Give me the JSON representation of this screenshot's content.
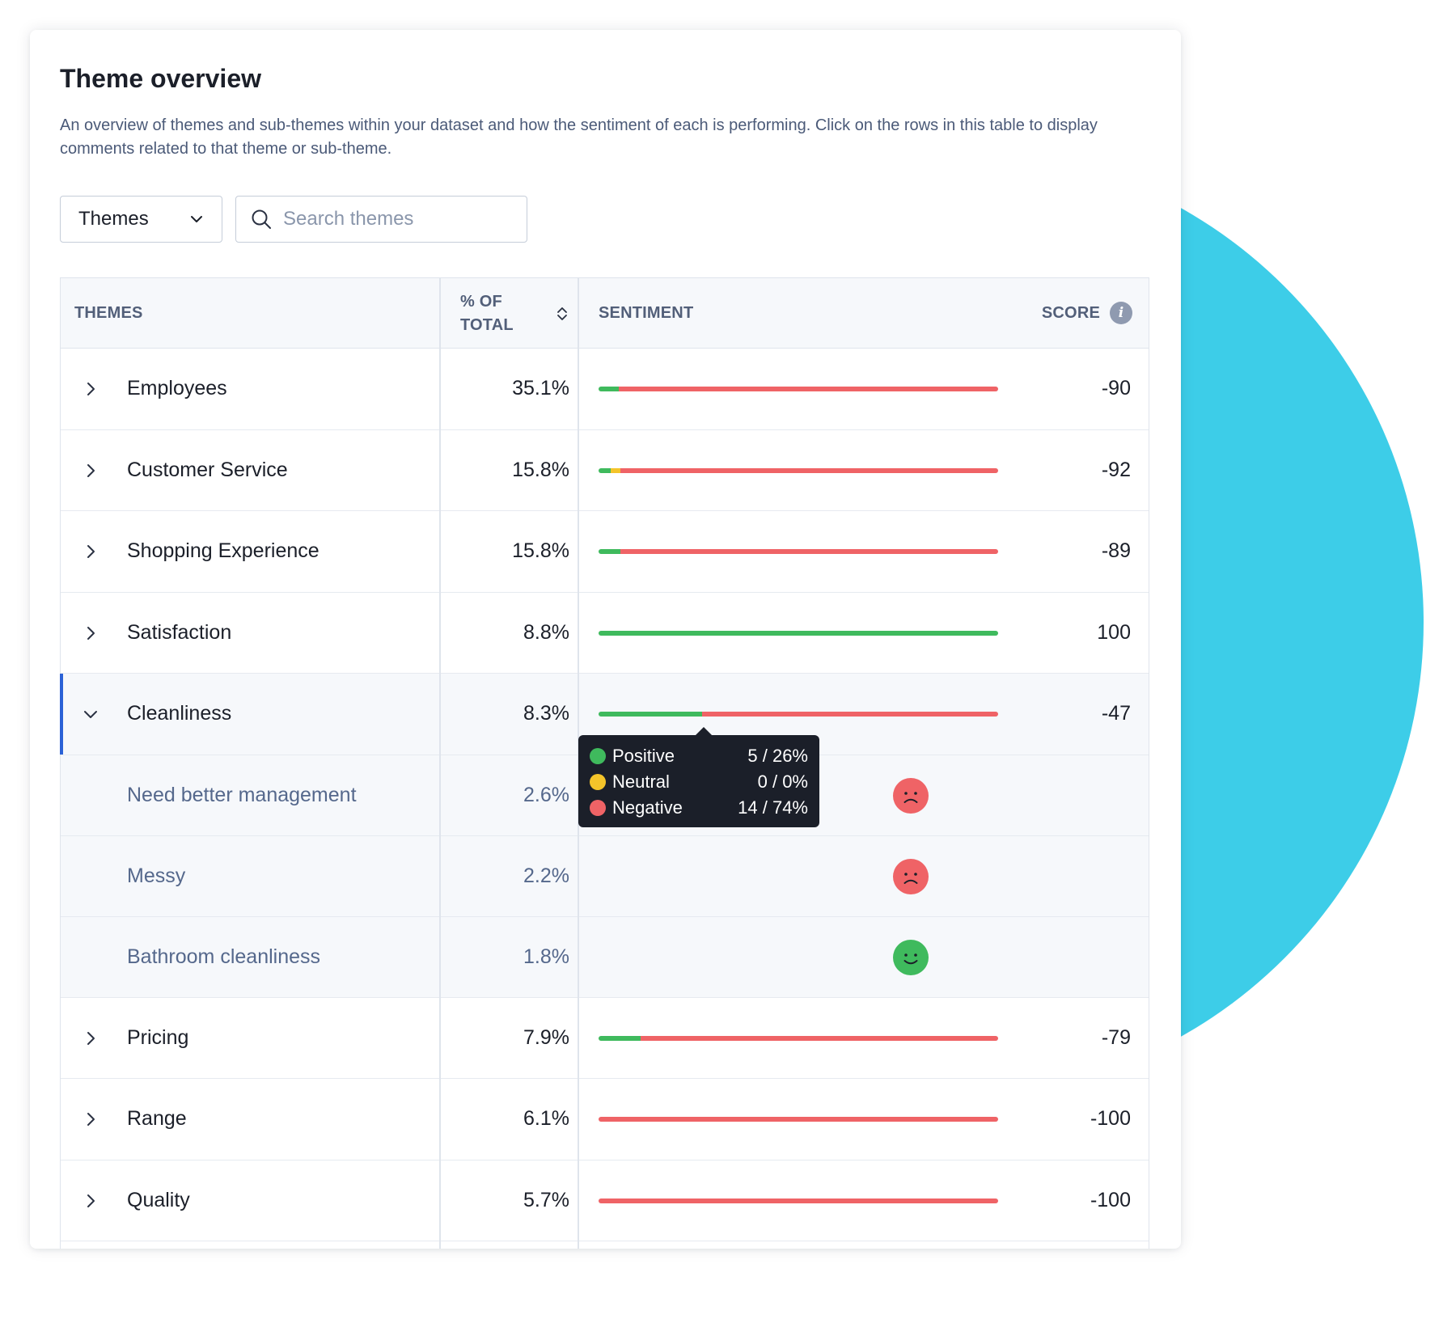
{
  "panel": {
    "title": "Theme overview",
    "description": "An overview of themes and sub-themes within your dataset and how the sentiment of each is performing. Click on the rows in this table to display comments related to that theme or sub-theme."
  },
  "controls": {
    "view_select": "Themes",
    "search_placeholder": "Search themes"
  },
  "table": {
    "headers": {
      "themes": "THEMES",
      "pct_line1": "% OF",
      "pct_line2": "TOTAL",
      "sentiment": "SENTIMENT",
      "score": "SCORE"
    },
    "rows": [
      {
        "name": "Employees",
        "pct": "35.1%",
        "score": "-90",
        "pos": 5,
        "neu": 0,
        "neg": 95
      },
      {
        "name": "Customer Service",
        "pct": "15.8%",
        "score": "-92",
        "pos": 3,
        "neu": 2.5,
        "neg": 94.5
      },
      {
        "name": "Shopping Experience",
        "pct": "15.8%",
        "score": "-89",
        "pos": 5.5,
        "neu": 0,
        "neg": 94.5
      },
      {
        "name": "Satisfaction",
        "pct": "8.8%",
        "score": "100",
        "pos": 100,
        "neu": 0,
        "neg": 0
      },
      {
        "name": "Cleanliness",
        "pct": "8.3%",
        "score": "-47",
        "pos": 26,
        "neu": 0,
        "neg": 74,
        "expanded": true
      },
      {
        "name": "Pricing",
        "pct": "7.9%",
        "score": "-79",
        "pos": 10.5,
        "neu": 0,
        "neg": 89.5
      },
      {
        "name": "Range",
        "pct": "6.1%",
        "score": "-100",
        "pos": 0,
        "neu": 0,
        "neg": 100
      },
      {
        "name": "Quality",
        "pct": "5.7%",
        "score": "-100",
        "pos": 0,
        "neu": 0,
        "neg": 100
      }
    ],
    "subrows": [
      {
        "name": "Need better management",
        "pct": "2.6%",
        "sentiment": "negative"
      },
      {
        "name": "Messy",
        "pct": "2.2%",
        "sentiment": "negative"
      },
      {
        "name": "Bathroom cleanliness",
        "pct": "1.8%",
        "sentiment": "positive"
      }
    ]
  },
  "tooltip": {
    "positive_label": "Positive",
    "positive_value": "5 / 26%",
    "neutral_label": "Neutral",
    "neutral_value": "0 / 0%",
    "negative_label": "Negative",
    "negative_value": "14 / 74%"
  },
  "colors": {
    "positive": "#3fba5d",
    "neutral": "#f4c42a",
    "negative": "#ef6366",
    "accent": "#2b62d6",
    "backdrop": "#3dcde8"
  }
}
